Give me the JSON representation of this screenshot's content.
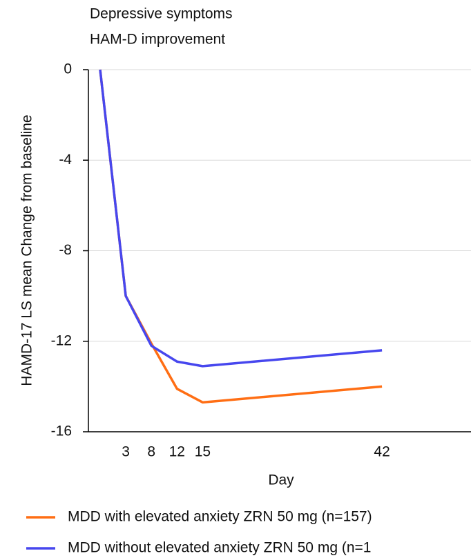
{
  "chart_data": {
    "type": "line",
    "title": "Depressive symptoms",
    "subtitle": "HAM-D improvement",
    "y_label": "HAMD-17 LS mean Change from baseline",
    "x_label": "Day",
    "categories": [
      null,
      "3",
      "8",
      "12",
      "15",
      "42"
    ],
    "series": [
      {
        "name": "MDD with elevated anxiety ZRN 50 mg (n=157)",
        "color": "#ff6e14",
        "values": [
          0,
          -10,
          -12.1,
          -14.1,
          -14.7,
          -14
        ]
      },
      {
        "name": "MDD without elevated anxiety ZRN 50 mg (n=1",
        "color": "#4747ee",
        "values": [
          0,
          -10,
          -12.2,
          -12.9,
          -13.1,
          -12.4
        ]
      }
    ],
    "ylim": [
      -16,
      0
    ],
    "yticks": [
      -16,
      -12,
      -8,
      -4,
      0
    ],
    "grid": true
  }
}
